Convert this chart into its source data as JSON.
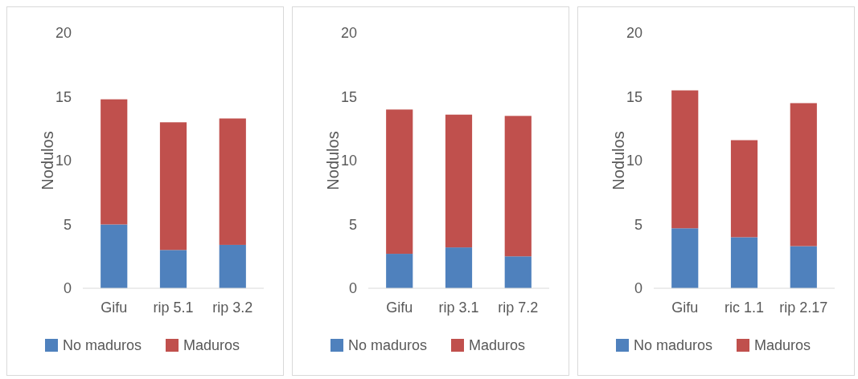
{
  "chart_data": [
    {
      "type": "bar",
      "stacked": true,
      "categories": [
        "Gifu",
        "rip 5.1",
        "rip 3.2"
      ],
      "ylabel": "Nodulos",
      "ylim": [
        0,
        20
      ],
      "yticks": [
        0,
        5,
        10,
        15,
        20
      ],
      "legend": "bottom",
      "grid": false,
      "series": [
        {
          "name": "No maduros",
          "color": "#4f81bd",
          "values": [
            5.0,
            3.0,
            3.4
          ]
        },
        {
          "name": "Maduros",
          "color": "#c0504d",
          "values": [
            9.8,
            10.0,
            9.9
          ]
        }
      ]
    },
    {
      "type": "bar",
      "stacked": true,
      "categories": [
        "Gifu",
        "rip 3.1",
        "rip 7.2"
      ],
      "ylabel": "Nodulos",
      "ylim": [
        0,
        20
      ],
      "yticks": [
        0,
        5,
        10,
        15,
        20
      ],
      "legend": "bottom",
      "grid": false,
      "series": [
        {
          "name": "No maduros",
          "color": "#4f81bd",
          "values": [
            2.7,
            3.2,
            2.5
          ]
        },
        {
          "name": "Maduros",
          "color": "#c0504d",
          "values": [
            11.3,
            10.4,
            11.0
          ]
        }
      ]
    },
    {
      "type": "bar",
      "stacked": true,
      "categories": [
        "Gifu",
        "ric 1.1",
        "rip 2.17"
      ],
      "ylabel": "Nodulos",
      "ylim": [
        0,
        20
      ],
      "yticks": [
        0,
        5,
        10,
        15,
        20
      ],
      "legend": "bottom",
      "grid": false,
      "series": [
        {
          "name": "No maduros",
          "color": "#4f81bd",
          "values": [
            4.7,
            4.0,
            3.3
          ]
        },
        {
          "name": "Maduros",
          "color": "#c0504d",
          "values": [
            10.8,
            7.6,
            11.2
          ]
        }
      ]
    }
  ]
}
